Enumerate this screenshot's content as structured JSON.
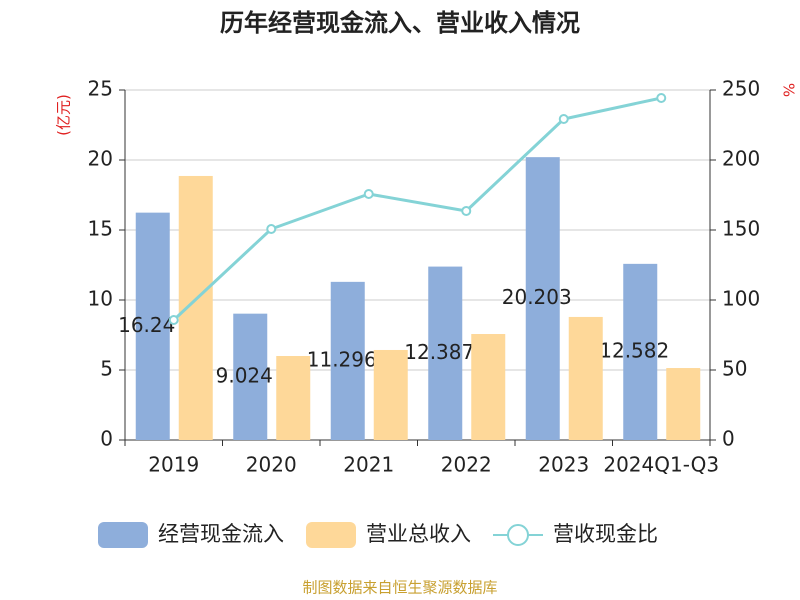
{
  "chart_data": {
    "type": "bar_line",
    "title": "历年经营现金流入、营业收入情况",
    "y_label": "(亿元)",
    "y2_label": "%",
    "categories": [
      "2019",
      "2020",
      "2021",
      "2022",
      "2023",
      "2024Q1-Q3"
    ],
    "series": [
      {
        "name": "经营现金流入",
        "type": "bar",
        "color": "#8eaedb",
        "values": [
          16.24,
          9.024,
          11.296,
          12.387,
          20.203,
          12.582
        ]
      },
      {
        "name": "营业总收入",
        "type": "bar",
        "color": "#fed899",
        "values": [
          18.86,
          6.0,
          6.43,
          7.57,
          8.79,
          5.14
        ]
      },
      {
        "name": "营收现金比",
        "type": "line",
        "axis": "y2",
        "color": "#84d3d6",
        "values": [
          85.7,
          150.7,
          175.7,
          163.6,
          229.3,
          244.3
        ]
      }
    ],
    "ylim": [
      0,
      25
    ],
    "yticks": [
      0,
      5,
      10,
      15,
      20,
      25
    ],
    "y2lim": [
      0,
      250
    ],
    "y2ticks": [
      0,
      50,
      100,
      150,
      200,
      250
    ],
    "grid": true,
    "source": "制图数据来自恒生聚源数据库"
  }
}
